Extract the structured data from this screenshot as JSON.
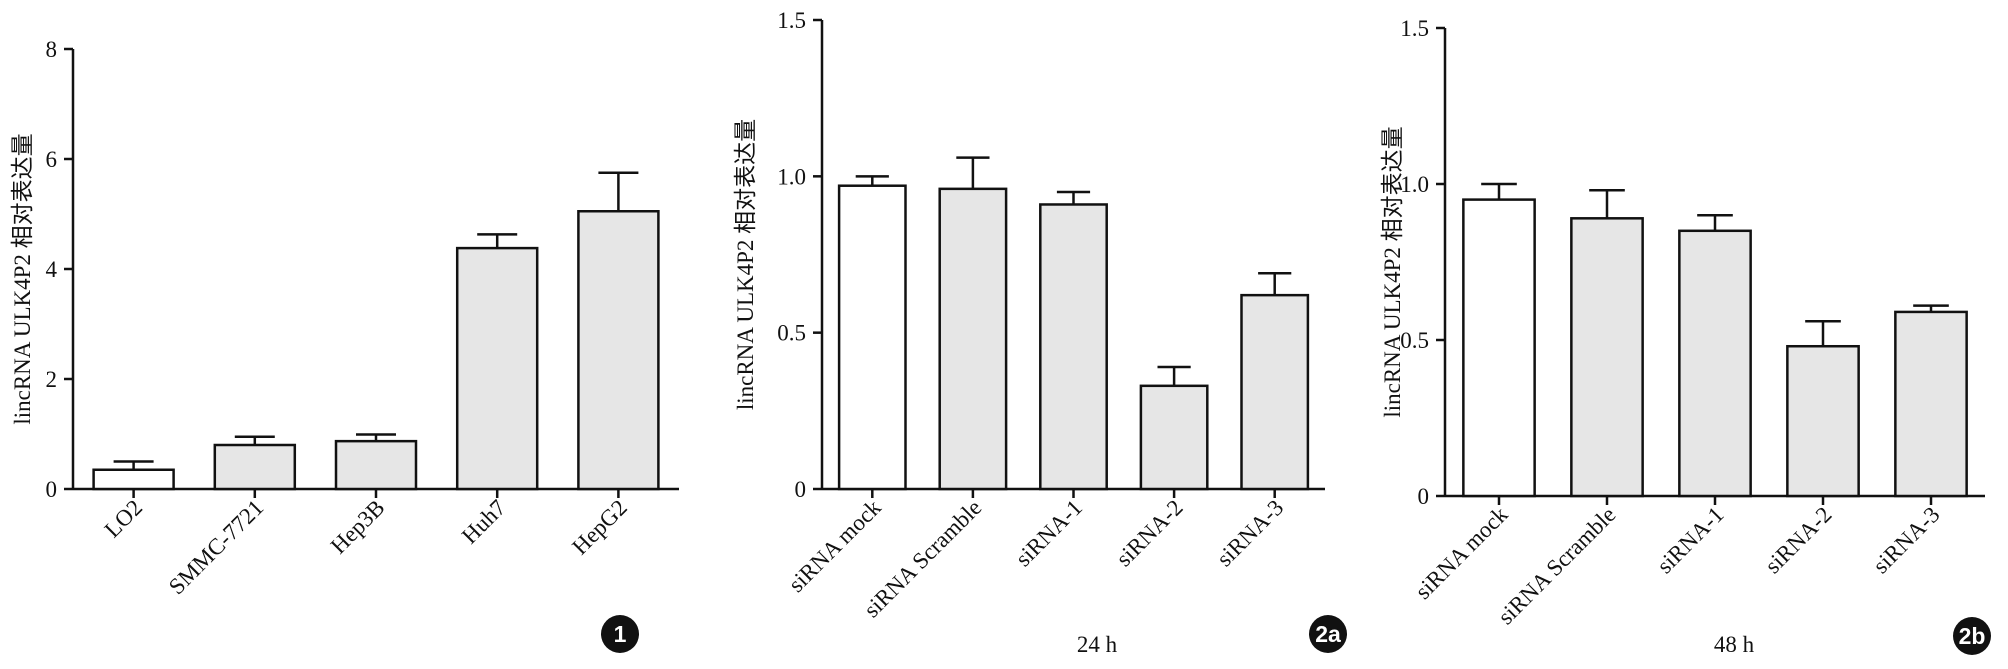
{
  "chart_data": [
    {
      "type": "bar",
      "ylabel": "lincRNA ULK4P2  相对表达量",
      "badge": "1",
      "categories": [
        "LO2",
        "SMMC-7721",
        "Hep3B",
        "Huh7",
        "HepG2"
      ],
      "values": [
        0.35,
        0.8,
        0.87,
        4.38,
        5.05
      ],
      "errors": [
        0.15,
        0.15,
        0.12,
        0.25,
        0.7
      ],
      "colors": [
        "#ffffff",
        "#e6e6e6",
        "#e6e6e6",
        "#e6e6e6",
        "#e6e6e6"
      ],
      "ylim": [
        0,
        8
      ],
      "yticks": [
        0,
        2,
        4,
        6,
        8
      ]
    },
    {
      "type": "bar",
      "ylabel": "lincRNA ULK4P2  相对表达量",
      "badge": "2a",
      "subtitle": "24 h",
      "categories": [
        "siRNA mock",
        "siRNA Scramble",
        "siRNA-1",
        "siRNA-2",
        "siRNA-3"
      ],
      "values": [
        0.97,
        0.96,
        0.91,
        0.33,
        0.62
      ],
      "errors": [
        0.03,
        0.1,
        0.04,
        0.06,
        0.07
      ],
      "colors": [
        "#ffffff",
        "#e6e6e6",
        "#e6e6e6",
        "#e6e6e6",
        "#e6e6e6"
      ],
      "ylim": [
        0,
        1.5
      ],
      "yticks": [
        0,
        0.5,
        {
          "value": 1,
          "label": "1.0"
        },
        1.5
      ]
    },
    {
      "type": "bar",
      "ylabel": "lincRNA ULK4P2  相对表达量",
      "badge": "2b",
      "subtitle": "48 h",
      "categories": [
        "siRNA mock",
        "siRNA Scramble",
        "siRNA-1",
        "siRNA-2",
        "siRNA-3"
      ],
      "values": [
        0.95,
        0.89,
        0.85,
        0.48,
        0.59
      ],
      "errors": [
        0.05,
        0.09,
        0.05,
        0.08,
        0.02
      ],
      "colors": [
        "#ffffff",
        "#e6e6e6",
        "#e6e6e6",
        "#e6e6e6",
        "#e6e6e6"
      ],
      "ylim": [
        0,
        1.5
      ],
      "yticks": [
        0,
        0.5,
        {
          "value": 1,
          "label": "1.0"
        },
        1.5
      ]
    }
  ]
}
